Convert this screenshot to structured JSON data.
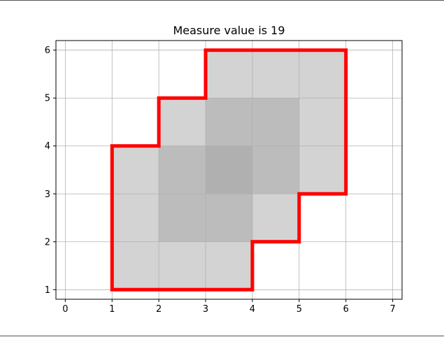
{
  "chart_data": {
    "type": "polygon-grid",
    "title": "Measure value is 19",
    "xlabel": "",
    "ylabel": "",
    "xlim": [
      -0.2,
      7.2
    ],
    "ylim": [
      0.8,
      6.2
    ],
    "xticks": [
      0,
      1,
      2,
      3,
      4,
      5,
      6,
      7
    ],
    "yticks": [
      1,
      2,
      3,
      4,
      5,
      6
    ],
    "grid": true,
    "outline_color": "#ff0000",
    "outline": [
      [
        1,
        1
      ],
      [
        4,
        1
      ],
      [
        4,
        2
      ],
      [
        5,
        2
      ],
      [
        5,
        3
      ],
      [
        6,
        3
      ],
      [
        6,
        6
      ],
      [
        3,
        6
      ],
      [
        3,
        5
      ],
      [
        2,
        5
      ],
      [
        2,
        4
      ],
      [
        1,
        4
      ],
      [
        1,
        1
      ]
    ],
    "cells": [
      {
        "x": 1,
        "y": 1,
        "overlap": 1
      },
      {
        "x": 2,
        "y": 1,
        "overlap": 1
      },
      {
        "x": 3,
        "y": 1,
        "overlap": 1
      },
      {
        "x": 1,
        "y": 2,
        "overlap": 1
      },
      {
        "x": 2,
        "y": 2,
        "overlap": 2
      },
      {
        "x": 3,
        "y": 2,
        "overlap": 2
      },
      {
        "x": 4,
        "y": 2,
        "overlap": 1
      },
      {
        "x": 1,
        "y": 3,
        "overlap": 1
      },
      {
        "x": 2,
        "y": 3,
        "overlap": 2
      },
      {
        "x": 3,
        "y": 3,
        "overlap": 3
      },
      {
        "x": 4,
        "y": 3,
        "overlap": 2
      },
      {
        "x": 5,
        "y": 3,
        "overlap": 1
      },
      {
        "x": 2,
        "y": 4,
        "overlap": 1
      },
      {
        "x": 3,
        "y": 4,
        "overlap": 2
      },
      {
        "x": 4,
        "y": 4,
        "overlap": 2
      },
      {
        "x": 5,
        "y": 4,
        "overlap": 1
      },
      {
        "x": 3,
        "y": 5,
        "overlap": 1
      },
      {
        "x": 4,
        "y": 5,
        "overlap": 1
      },
      {
        "x": 5,
        "y": 5,
        "overlap": 1
      }
    ],
    "overlap_colors": {
      "1": "#d3d3d3",
      "2": "#bcbcbc",
      "3": "#b0b0b0"
    }
  }
}
